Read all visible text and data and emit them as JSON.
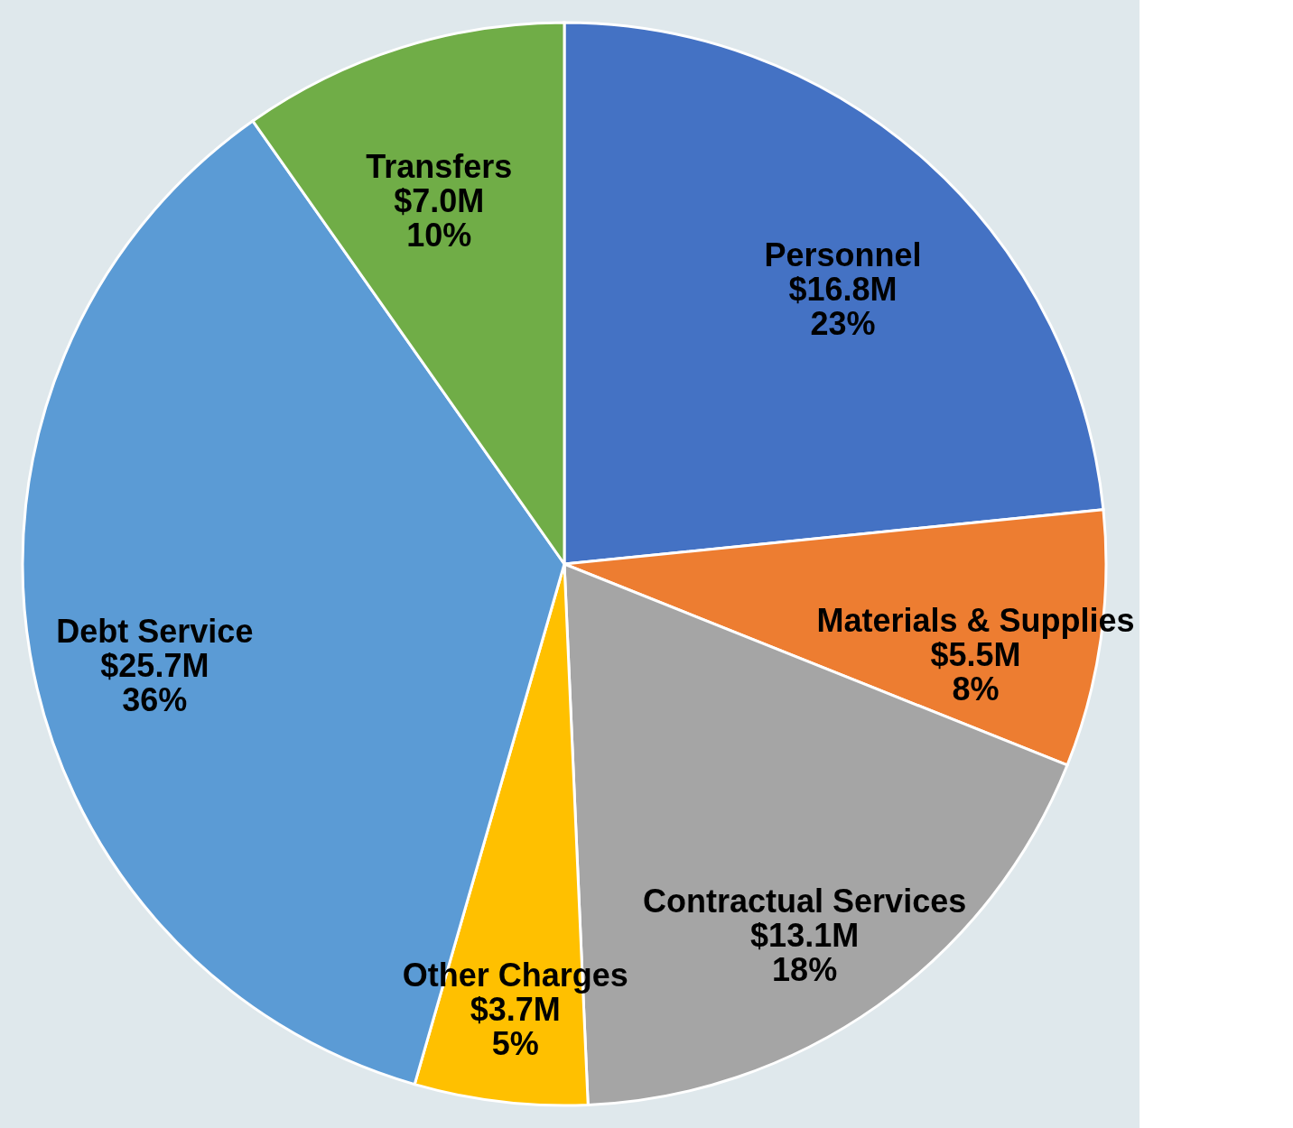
{
  "chart_data": {
    "type": "pie",
    "categories": [
      "Personnel",
      "Materials & Supplies",
      "Contractual Services",
      "Other Charges",
      "Debt Service",
      "Transfers"
    ],
    "values": [
      16.8,
      5.5,
      13.1,
      3.7,
      25.7,
      7.0
    ],
    "value_labels": [
      "$16.8M",
      "$5.5M",
      "$13.1M",
      "$3.7M",
      "$25.7M",
      "$7.0M"
    ],
    "annotations": [
      "23%",
      "8%",
      "18%",
      "5%",
      "36%",
      "10%"
    ],
    "colors": [
      "#4472c4",
      "#ed7d31",
      "#a5a5a5",
      "#ffc000",
      "#5b9bd5",
      "#70ad47"
    ]
  }
}
